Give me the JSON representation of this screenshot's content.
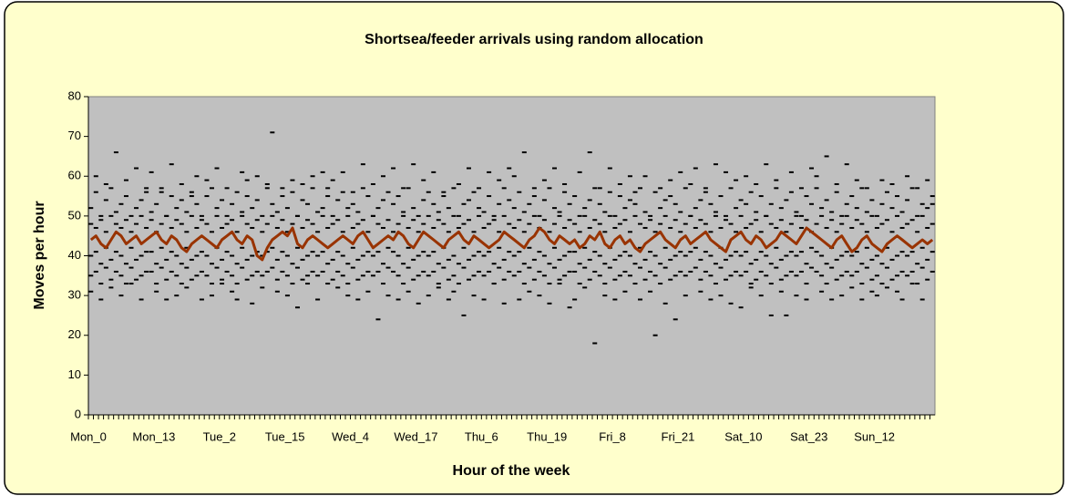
{
  "chart_data": {
    "type": "line",
    "title": "Shortsea/feeder arrivals using random allocation",
    "x_label": "Hour of the week",
    "y_label": "Moves per hour",
    "ylim": [
      0,
      80
    ],
    "yticks": [
      0,
      10,
      20,
      30,
      40,
      50,
      60,
      70,
      80
    ],
    "categories": [
      "Mon_0",
      null,
      null,
      null,
      null,
      null,
      null,
      null,
      null,
      null,
      null,
      null,
      null,
      "Mon_13",
      null,
      null,
      null,
      null,
      null,
      null,
      null,
      null,
      null,
      null,
      null,
      null,
      "Tue_2",
      null,
      null,
      null,
      null,
      null,
      null,
      null,
      null,
      null,
      null,
      null,
      null,
      "Tue_15",
      null,
      null,
      null,
      null,
      null,
      null,
      null,
      null,
      null,
      null,
      null,
      null,
      "Wed_4",
      null,
      null,
      null,
      null,
      null,
      null,
      null,
      null,
      null,
      null,
      null,
      null,
      "Wed_17",
      null,
      null,
      null,
      null,
      null,
      null,
      null,
      null,
      null,
      null,
      null,
      null,
      "Thu_6",
      null,
      null,
      null,
      null,
      null,
      null,
      null,
      null,
      null,
      null,
      null,
      null,
      "Thu_19",
      null,
      null,
      null,
      null,
      null,
      null,
      null,
      null,
      null,
      null,
      null,
      null,
      "Fri_8",
      null,
      null,
      null,
      null,
      null,
      null,
      null,
      null,
      null,
      null,
      null,
      null,
      "Fri_21",
      null,
      null,
      null,
      null,
      null,
      null,
      null,
      null,
      null,
      null,
      null,
      null,
      "Sat_10",
      null,
      null,
      null,
      null,
      null,
      null,
      null,
      null,
      null,
      null,
      null,
      null,
      "Sat_23",
      null,
      null,
      null,
      null,
      null,
      null,
      null,
      null,
      null,
      null,
      null,
      null,
      "Sun_12",
      null,
      null,
      null,
      null,
      null,
      null,
      null,
      null,
      null,
      null,
      null
    ],
    "series": [
      {
        "style": "dash",
        "color": "#000000",
        "values": [
          52,
          56,
          50,
          54,
          57,
          51,
          53,
          55,
          50,
          52,
          54,
          56,
          51,
          53,
          57,
          50,
          55,
          52,
          54,
          51,
          56,
          53,
          50,
          55,
          57,
          52,
          54,
          50,
          53,
          56,
          51,
          55,
          52,
          54,
          50,
          57,
          53,
          51,
          55,
          52,
          56,
          50,
          54,
          53,
          57,
          51,
          52,
          55,
          50,
          54,
          56,
          52,
          53,
          51,
          57,
          55,
          50,
          52,
          54,
          56,
          53,
          55,
          51,
          57,
          52,
          50,
          54,
          56,
          53,
          51,
          55,
          52,
          57,
          50,
          53,
          54,
          56,
          52,
          51,
          55,
          50,
          53,
          57,
          54,
          52,
          56,
          51,
          53,
          55,
          50,
          54,
          57,
          52,
          51,
          56,
          53,
          55,
          50,
          52,
          54,
          57,
          53,
          51,
          56,
          50,
          55,
          52,
          54,
          53,
          57,
          51,
          50,
          56,
          52,
          54,
          55,
          53,
          51,
          57,
          50,
          52,
          54,
          56,
          53,
          51,
          55,
          50,
          57,
          52,
          54,
          53,
          56,
          51,
          55,
          50,
          53,
          57,
          52,
          54,
          56,
          51,
          50,
          55,
          53,
          57,
          52,
          54,
          51,
          56,
          50,
          53,
          55,
          52,
          57,
          51,
          54,
          50,
          53,
          56,
          52,
          55,
          51,
          54,
          57,
          50,
          53,
          52,
          55
        ]
      },
      {
        "style": "dash",
        "color": "#000000",
        "values": [
          48,
          47,
          49,
          46,
          50,
          48,
          47,
          49,
          46,
          48,
          50,
          47,
          49,
          46,
          48,
          50,
          47,
          49,
          48,
          46,
          50,
          47,
          49,
          48,
          46,
          50,
          47,
          48,
          49,
          46,
          50,
          48,
          47,
          49,
          46,
          48,
          50,
          47,
          49,
          46,
          48,
          50,
          47,
          49,
          48,
          46,
          50,
          47,
          48,
          49,
          46,
          50,
          47,
          48,
          49,
          46,
          50,
          48,
          47,
          49,
          46,
          48,
          50,
          47,
          49,
          46,
          48,
          50,
          47,
          49,
          48,
          46,
          50,
          47,
          48,
          49,
          46,
          50,
          47,
          48,
          49,
          46,
          50,
          48,
          47,
          49,
          46,
          48,
          50,
          47,
          49,
          46,
          48,
          50,
          47,
          49,
          48,
          46,
          50,
          47,
          49,
          48,
          46,
          50,
          47,
          48,
          49,
          46,
          50,
          48,
          47,
          49,
          46,
          48,
          50,
          47,
          49,
          46,
          48,
          50,
          47,
          49,
          48,
          46,
          50,
          47,
          49,
          48,
          46,
          50,
          47,
          48,
          49,
          46,
          50,
          48,
          47,
          49,
          46,
          48,
          50,
          47,
          49,
          46,
          48,
          50,
          47,
          49,
          46,
          48,
          50,
          47,
          49,
          48,
          46,
          50,
          47,
          48,
          49,
          46,
          50,
          47,
          48,
          49,
          46,
          50,
          47,
          48
        ]
      },
      {
        "style": "dash",
        "color": "#000000",
        "values": [
          40,
          41,
          38,
          42,
          39,
          41,
          40,
          38,
          42,
          39,
          40,
          41,
          41,
          38,
          42,
          39,
          41,
          40,
          38,
          42,
          39,
          40,
          41,
          40,
          38,
          42,
          39,
          41,
          40,
          38,
          42,
          39,
          40,
          41,
          40,
          41,
          42,
          39,
          41,
          40,
          38,
          42,
          39,
          40,
          41,
          40,
          41,
          38,
          39,
          41,
          40,
          38,
          42,
          39,
          40,
          41,
          40,
          41,
          38,
          42,
          41,
          40,
          38,
          42,
          39,
          40,
          41,
          40,
          41,
          38,
          42,
          39,
          40,
          38,
          42,
          39,
          40,
          41,
          40,
          41,
          38,
          42,
          39,
          41,
          40,
          41,
          38,
          42,
          39,
          41,
          40,
          38,
          42,
          39,
          40,
          41,
          41,
          38,
          42,
          39,
          41,
          40,
          38,
          42,
          39,
          40,
          41,
          40,
          38,
          42,
          39,
          41,
          40,
          38,
          42,
          39,
          40,
          41,
          40,
          41,
          42,
          39,
          41,
          40,
          38,
          42,
          39,
          40,
          41,
          40,
          41,
          38,
          39,
          41,
          40,
          38,
          42,
          39,
          40,
          41,
          40,
          41,
          38,
          42,
          41,
          40,
          38,
          42,
          39,
          40,
          41,
          40,
          41,
          38,
          42,
          39,
          40,
          38,
          42,
          39,
          40,
          41,
          40,
          41,
          38,
          42,
          39,
          41
        ]
      },
      {
        "style": "dash",
        "color": "#000000",
        "values": [
          35,
          36,
          33,
          37,
          34,
          36,
          35,
          33,
          37,
          34,
          35,
          36,
          36,
          33,
          37,
          34,
          36,
          35,
          33,
          37,
          34,
          35,
          36,
          35,
          33,
          37,
          34,
          36,
          35,
          33,
          37,
          34,
          35,
          36,
          35,
          36,
          37,
          34,
          36,
          35,
          33,
          37,
          34,
          35,
          36,
          35,
          36,
          33,
          34,
          36,
          35,
          33,
          37,
          34,
          35,
          36,
          35,
          36,
          33,
          37,
          36,
          35,
          33,
          37,
          34,
          35,
          36,
          35,
          36,
          33,
          37,
          34,
          35,
          33,
          37,
          34,
          35,
          36,
          35,
          36,
          33,
          37,
          34,
          36,
          35,
          36,
          33,
          37,
          34,
          36,
          35,
          33,
          37,
          34,
          35,
          36,
          36,
          33,
          37,
          34,
          36,
          35,
          33,
          37,
          34,
          35,
          36,
          35,
          33,
          37,
          34,
          36,
          35,
          33,
          37,
          34,
          35,
          36,
          35,
          36,
          37,
          34,
          36,
          35,
          33,
          37,
          34,
          35,
          36,
          35,
          36,
          33,
          34,
          36,
          35,
          33,
          37,
          34,
          35,
          36,
          35,
          36,
          33,
          37,
          36,
          35,
          33,
          37,
          34,
          35,
          36,
          35,
          36,
          33,
          37,
          34,
          35,
          33,
          37,
          34,
          35,
          36,
          35,
          36,
          33,
          37,
          34,
          36
        ]
      },
      {
        "style": "dash",
        "color": "#000000",
        "values": [
          31,
          60,
          29,
          58,
          32,
          66,
          30,
          59,
          33,
          62,
          29,
          57,
          61,
          31,
          56,
          29,
          63,
          30,
          58,
          32,
          55,
          60,
          29,
          59,
          30,
          62,
          33,
          57,
          31,
          29,
          61,
          59,
          28,
          60,
          32,
          58,
          71,
          31,
          57,
          30,
          59,
          27,
          58,
          33,
          60,
          29,
          61,
          57,
          59,
          32,
          61,
          30,
          56,
          29,
          63,
          31,
          58,
          24,
          60,
          30,
          62,
          29,
          57,
          31,
          63,
          28,
          59,
          30,
          61,
          32,
          56,
          29,
          31,
          58,
          25,
          62,
          30,
          57,
          29,
          61,
          33,
          59,
          28,
          62,
          60,
          29,
          66,
          31,
          57,
          30,
          59,
          28,
          62,
          33,
          58,
          27,
          29,
          61,
          32,
          66,
          18,
          57,
          30,
          62,
          29,
          58,
          31,
          60,
          56,
          29,
          60,
          31,
          20,
          57,
          28,
          59,
          24,
          61,
          30,
          58,
          62,
          31,
          57,
          29,
          63,
          30,
          61,
          28,
          59,
          27,
          60,
          32,
          58,
          30,
          63,
          25,
          59,
          31,
          25,
          61,
          30,
          57,
          29,
          62,
          60,
          31,
          65,
          29,
          58,
          30,
          63,
          32,
          59,
          29,
          57,
          31,
          30,
          59,
          32,
          58,
          31,
          29,
          60,
          33,
          57,
          29,
          59,
          53
        ]
      },
      {
        "style": "line",
        "color": "#993300",
        "values": [
          44,
          45,
          43,
          42,
          44,
          46,
          45,
          43,
          44,
          45,
          43,
          44,
          45,
          46,
          44,
          43,
          45,
          44,
          42,
          41,
          43,
          44,
          45,
          44,
          43,
          42,
          44,
          45,
          46,
          44,
          43,
          45,
          44,
          40,
          39,
          42,
          44,
          45,
          46,
          45,
          47,
          43,
          42,
          44,
          45,
          44,
          43,
          42,
          43,
          44,
          45,
          44,
          43,
          45,
          46,
          44,
          42,
          43,
          44,
          45,
          44,
          46,
          45,
          43,
          42,
          44,
          46,
          45,
          44,
          43,
          42,
          44,
          45,
          46,
          44,
          43,
          45,
          44,
          43,
          42,
          43,
          44,
          46,
          45,
          44,
          43,
          42,
          44,
          45,
          47,
          46,
          44,
          43,
          45,
          44,
          43,
          44,
          42,
          43,
          45,
          44,
          46,
          43,
          42,
          44,
          45,
          43,
          44,
          42,
          41,
          43,
          44,
          45,
          46,
          44,
          43,
          42,
          44,
          45,
          43,
          44,
          45,
          46,
          44,
          43,
          42,
          41,
          44,
          45,
          46,
          44,
          43,
          45,
          44,
          42,
          43,
          44,
          46,
          45,
          44,
          43,
          45,
          47,
          46,
          45,
          44,
          43,
          42,
          44,
          45,
          43,
          41,
          42,
          44,
          45,
          43,
          42,
          41,
          43,
          44,
          45,
          44,
          43,
          42,
          43,
          44,
          43,
          44
        ]
      }
    ],
    "background": "#ffffcc",
    "plot_background": "#c0c0c0"
  }
}
